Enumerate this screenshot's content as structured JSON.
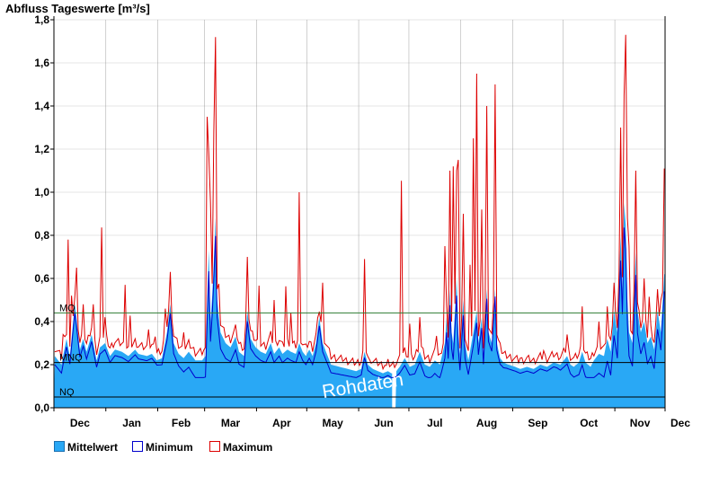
{
  "chart_data": {
    "type": "area",
    "title": "Abfluss Tageswerte [m³/s]",
    "xlabel": "",
    "ylabel": "",
    "ylim": [
      0,
      1.8
    ],
    "y_ticks": [
      "0,0",
      "0,2",
      "0,4",
      "0,6",
      "0,8",
      "1,0",
      "1,2",
      "1,4",
      "1,6",
      "1,8"
    ],
    "x_ticks": [
      "Dec",
      "Jan",
      "Feb",
      "Mar",
      "Apr",
      "May",
      "Jun",
      "Jul",
      "Aug",
      "Sep",
      "Oct",
      "Nov",
      "Dec"
    ],
    "grid": true,
    "legend_position": "bottom-left",
    "days": 365,
    "gap_days": [
      202,
      203
    ],
    "overlay_text": "Rohdaten",
    "reference_lines": [
      {
        "label": "MQ",
        "value": 0.44,
        "color": "#2e7d32"
      },
      {
        "label": "MNQ",
        "value": 0.21,
        "color": "#000000"
      },
      {
        "label": "NQ",
        "value": 0.05,
        "color": "#000000"
      }
    ],
    "series": [
      {
        "name": "Mittelwert",
        "color": "#29a8f5",
        "style": "area"
      },
      {
        "name": "Minimum",
        "color": "#0000cc",
        "style": "line"
      },
      {
        "name": "Maximum",
        "color": "#dd0000",
        "style": "line"
      }
    ],
    "mean_breakpoints": [
      [
        0,
        0.24
      ],
      [
        4,
        0.2
      ],
      [
        7,
        0.32
      ],
      [
        9,
        0.24
      ],
      [
        12,
        0.48
      ],
      [
        15,
        0.27
      ],
      [
        17,
        0.32
      ],
      [
        19,
        0.26
      ],
      [
        22,
        0.34
      ],
      [
        25,
        0.22
      ],
      [
        27,
        0.28
      ],
      [
        30,
        0.3
      ],
      [
        33,
        0.24
      ],
      [
        36,
        0.27
      ],
      [
        40,
        0.26
      ],
      [
        44,
        0.24
      ],
      [
        48,
        0.27
      ],
      [
        50,
        0.25
      ],
      [
        55,
        0.24
      ],
      [
        58,
        0.25
      ],
      [
        61,
        0.22
      ],
      [
        64,
        0.23
      ],
      [
        67,
        0.35
      ],
      [
        69,
        0.48
      ],
      [
        71,
        0.3
      ],
      [
        74,
        0.25
      ],
      [
        77,
        0.23
      ],
      [
        80,
        0.26
      ],
      [
        82,
        0.24
      ],
      [
        84,
        0.22
      ],
      [
        88,
        0.22
      ],
      [
        90,
        0.24
      ],
      [
        91,
        0.5
      ],
      [
        92,
        0.73
      ],
      [
        93,
        0.4
      ],
      [
        94,
        0.52
      ],
      [
        95,
        0.68
      ],
      [
        96,
        0.88
      ],
      [
        97,
        0.5
      ],
      [
        99,
        0.35
      ],
      [
        102,
        0.3
      ],
      [
        105,
        0.28
      ],
      [
        108,
        0.33
      ],
      [
        110,
        0.26
      ],
      [
        113,
        0.24
      ],
      [
        115,
        0.45
      ],
      [
        117,
        0.32
      ],
      [
        120,
        0.28
      ],
      [
        123,
        0.26
      ],
      [
        126,
        0.25
      ],
      [
        129,
        0.3
      ],
      [
        131,
        0.25
      ],
      [
        134,
        0.28
      ],
      [
        136,
        0.25
      ],
      [
        139,
        0.27
      ],
      [
        141,
        0.26
      ],
      [
        144,
        0.25
      ],
      [
        146,
        0.3
      ],
      [
        148,
        0.26
      ],
      [
        150,
        0.24
      ],
      [
        152,
        0.27
      ],
      [
        154,
        0.24
      ],
      [
        156,
        0.3
      ],
      [
        158,
        0.42
      ],
      [
        160,
        0.3
      ],
      [
        162,
        0.26
      ],
      [
        165,
        0.2
      ],
      [
        170,
        0.19
      ],
      [
        175,
        0.18
      ],
      [
        180,
        0.17
      ],
      [
        183,
        0.18
      ],
      [
        185,
        0.26
      ],
      [
        187,
        0.2
      ],
      [
        190,
        0.18
      ],
      [
        193,
        0.17
      ],
      [
        196,
        0.16
      ],
      [
        199,
        0.17
      ],
      [
        201,
        0.16
      ],
      [
        204,
        0.17
      ],
      [
        206,
        0.19
      ],
      [
        209,
        0.23
      ],
      [
        212,
        0.19
      ],
      [
        215,
        0.2
      ],
      [
        218,
        0.26
      ],
      [
        221,
        0.2
      ],
      [
        224,
        0.19
      ],
      [
        227,
        0.22
      ],
      [
        230,
        0.2
      ],
      [
        233,
        0.3
      ],
      [
        234,
        0.42
      ],
      [
        235,
        0.3
      ],
      [
        236,
        0.55
      ],
      [
        237,
        0.35
      ],
      [
        238,
        0.3
      ],
      [
        240,
        0.6
      ],
      [
        241,
        0.35
      ],
      [
        242,
        0.25
      ],
      [
        244,
        0.5
      ],
      [
        245,
        0.3
      ],
      [
        247,
        0.22
      ],
      [
        250,
        0.35
      ],
      [
        252,
        0.45
      ],
      [
        253,
        0.3
      ],
      [
        255,
        0.42
      ],
      [
        256,
        0.25
      ],
      [
        258,
        0.55
      ],
      [
        259,
        0.35
      ],
      [
        261,
        0.3
      ],
      [
        263,
        0.55
      ],
      [
        264,
        0.3
      ],
      [
        266,
        0.23
      ],
      [
        268,
        0.21
      ],
      [
        271,
        0.2
      ],
      [
        275,
        0.19
      ],
      [
        278,
        0.18
      ],
      [
        282,
        0.19
      ],
      [
        286,
        0.18
      ],
      [
        290,
        0.2
      ],
      [
        294,
        0.19
      ],
      [
        298,
        0.21
      ],
      [
        302,
        0.2
      ],
      [
        306,
        0.24
      ],
      [
        308,
        0.2
      ],
      [
        310,
        0.19
      ],
      [
        313,
        0.21
      ],
      [
        315,
        0.26
      ],
      [
        317,
        0.21
      ],
      [
        320,
        0.19
      ],
      [
        322,
        0.22
      ],
      [
        325,
        0.25
      ],
      [
        328,
        0.24
      ],
      [
        330,
        0.32
      ],
      [
        332,
        0.26
      ],
      [
        334,
        0.45
      ],
      [
        336,
        0.35
      ],
      [
        337,
        0.6
      ],
      [
        338,
        0.8
      ],
      [
        339,
        0.55
      ],
      [
        340,
        0.95
      ],
      [
        341,
        0.85
      ],
      [
        342,
        0.5
      ],
      [
        343,
        0.35
      ],
      [
        345,
        0.3
      ],
      [
        347,
        0.72
      ],
      [
        348,
        0.45
      ],
      [
        350,
        0.35
      ],
      [
        352,
        0.4
      ],
      [
        354,
        0.3
      ],
      [
        356,
        0.33
      ],
      [
        358,
        0.27
      ],
      [
        360,
        0.45
      ],
      [
        362,
        0.35
      ],
      [
        364,
        0.62
      ]
    ],
    "min_offsets": [
      [
        0,
        0.04
      ],
      [
        30,
        0.03
      ],
      [
        60,
        0.02
      ],
      [
        91,
        0.1
      ],
      [
        97,
        0.08
      ],
      [
        120,
        0.04
      ],
      [
        160,
        0.04
      ],
      [
        200,
        0.02
      ],
      [
        240,
        0.08
      ],
      [
        270,
        0.02
      ],
      [
        300,
        0.02
      ],
      [
        336,
        0.12
      ],
      [
        364,
        0.08
      ]
    ],
    "max_peaks": [
      [
        0,
        0.02
      ],
      [
        5,
        0.1
      ],
      [
        8,
        0.5
      ],
      [
        10,
        0.2
      ],
      [
        13,
        0.24
      ],
      [
        17,
        0.16
      ],
      [
        23,
        0.18
      ],
      [
        28,
        0.55
      ],
      [
        30,
        0.12
      ],
      [
        42,
        0.32
      ],
      [
        45,
        0.18
      ],
      [
        56,
        0.12
      ],
      [
        60,
        0.1
      ],
      [
        66,
        0.15
      ],
      [
        69,
        0.15
      ],
      [
        77,
        0.12
      ],
      [
        90,
        0.04
      ],
      [
        91,
        0.85
      ],
      [
        92,
        0.45
      ],
      [
        93,
        0.55
      ],
      [
        95,
        0.6
      ],
      [
        96,
        0.84
      ],
      [
        98,
        0.15
      ],
      [
        115,
        0.25
      ],
      [
        122,
        0.3
      ],
      [
        131,
        0.25
      ],
      [
        138,
        0.3
      ],
      [
        141,
        0.18
      ],
      [
        146,
        0.7
      ],
      [
        160,
        0.28
      ],
      [
        172,
        0.03
      ],
      [
        185,
        0.43
      ],
      [
        188,
        0.03
      ],
      [
        198,
        0.03
      ],
      [
        207,
        0.85
      ],
      [
        212,
        0.2
      ],
      [
        218,
        0.16
      ],
      [
        228,
        0.12
      ],
      [
        233,
        0.45
      ],
      [
        236,
        0.55
      ],
      [
        238,
        0.82
      ],
      [
        240,
        0.5
      ],
      [
        241,
        0.8
      ],
      [
        244,
        0.4
      ],
      [
        248,
        0.4
      ],
      [
        250,
        0.9
      ],
      [
        252,
        1.1
      ],
      [
        255,
        0.5
      ],
      [
        258,
        0.85
      ],
      [
        263,
        0.95
      ],
      [
        266,
        0.07
      ],
      [
        278,
        0.05
      ],
      [
        292,
        0.07
      ],
      [
        306,
        0.1
      ],
      [
        315,
        0.21
      ],
      [
        325,
        0.15
      ],
      [
        330,
        0.15
      ],
      [
        334,
        0.13
      ],
      [
        338,
        0.5
      ],
      [
        340,
        0.5
      ],
      [
        341,
        0.88
      ],
      [
        342,
        0.38
      ],
      [
        343,
        0.4
      ],
      [
        347,
        0.38
      ],
      [
        352,
        0.2
      ],
      [
        355,
        0.2
      ],
      [
        360,
        0.1
      ],
      [
        362,
        0.15
      ],
      [
        364,
        0.49
      ]
    ]
  }
}
